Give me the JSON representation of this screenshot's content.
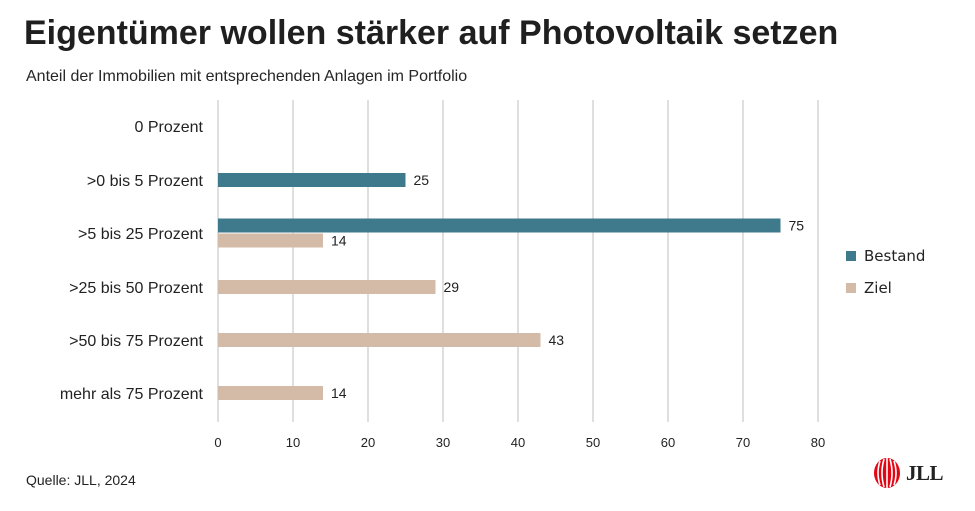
{
  "title": "Eigentümer wollen stärker auf Photovoltaik setzen",
  "subtitle": "Anteil der Immobilien mit entsprechenden Anlagen im Portfolio",
  "source": "Quelle: JLL, 2024",
  "logo": {
    "text": "JLL",
    "color": "#e30613"
  },
  "chart_data": {
    "type": "bar",
    "orientation": "horizontal",
    "categories": [
      "0 Prozent",
      ">0 bis 5 Prozent",
      ">5 bis 25 Prozent",
      ">25 bis 50 Prozent",
      ">50 bis 75 Prozent",
      "mehr als 75 Prozent"
    ],
    "series": [
      {
        "name": "Bestand",
        "color": "#3f7a8c",
        "values": [
          null,
          25,
          75,
          null,
          null,
          null
        ]
      },
      {
        "name": "Ziel",
        "color": "#d4bba8",
        "values": [
          null,
          null,
          14,
          29,
          43,
          14
        ]
      }
    ],
    "xlim": [
      0,
      80
    ],
    "xticks": [
      0,
      10,
      20,
      30,
      40,
      50,
      60,
      70,
      80
    ],
    "grid": "vertical",
    "legend": "right",
    "data_labels": true
  }
}
